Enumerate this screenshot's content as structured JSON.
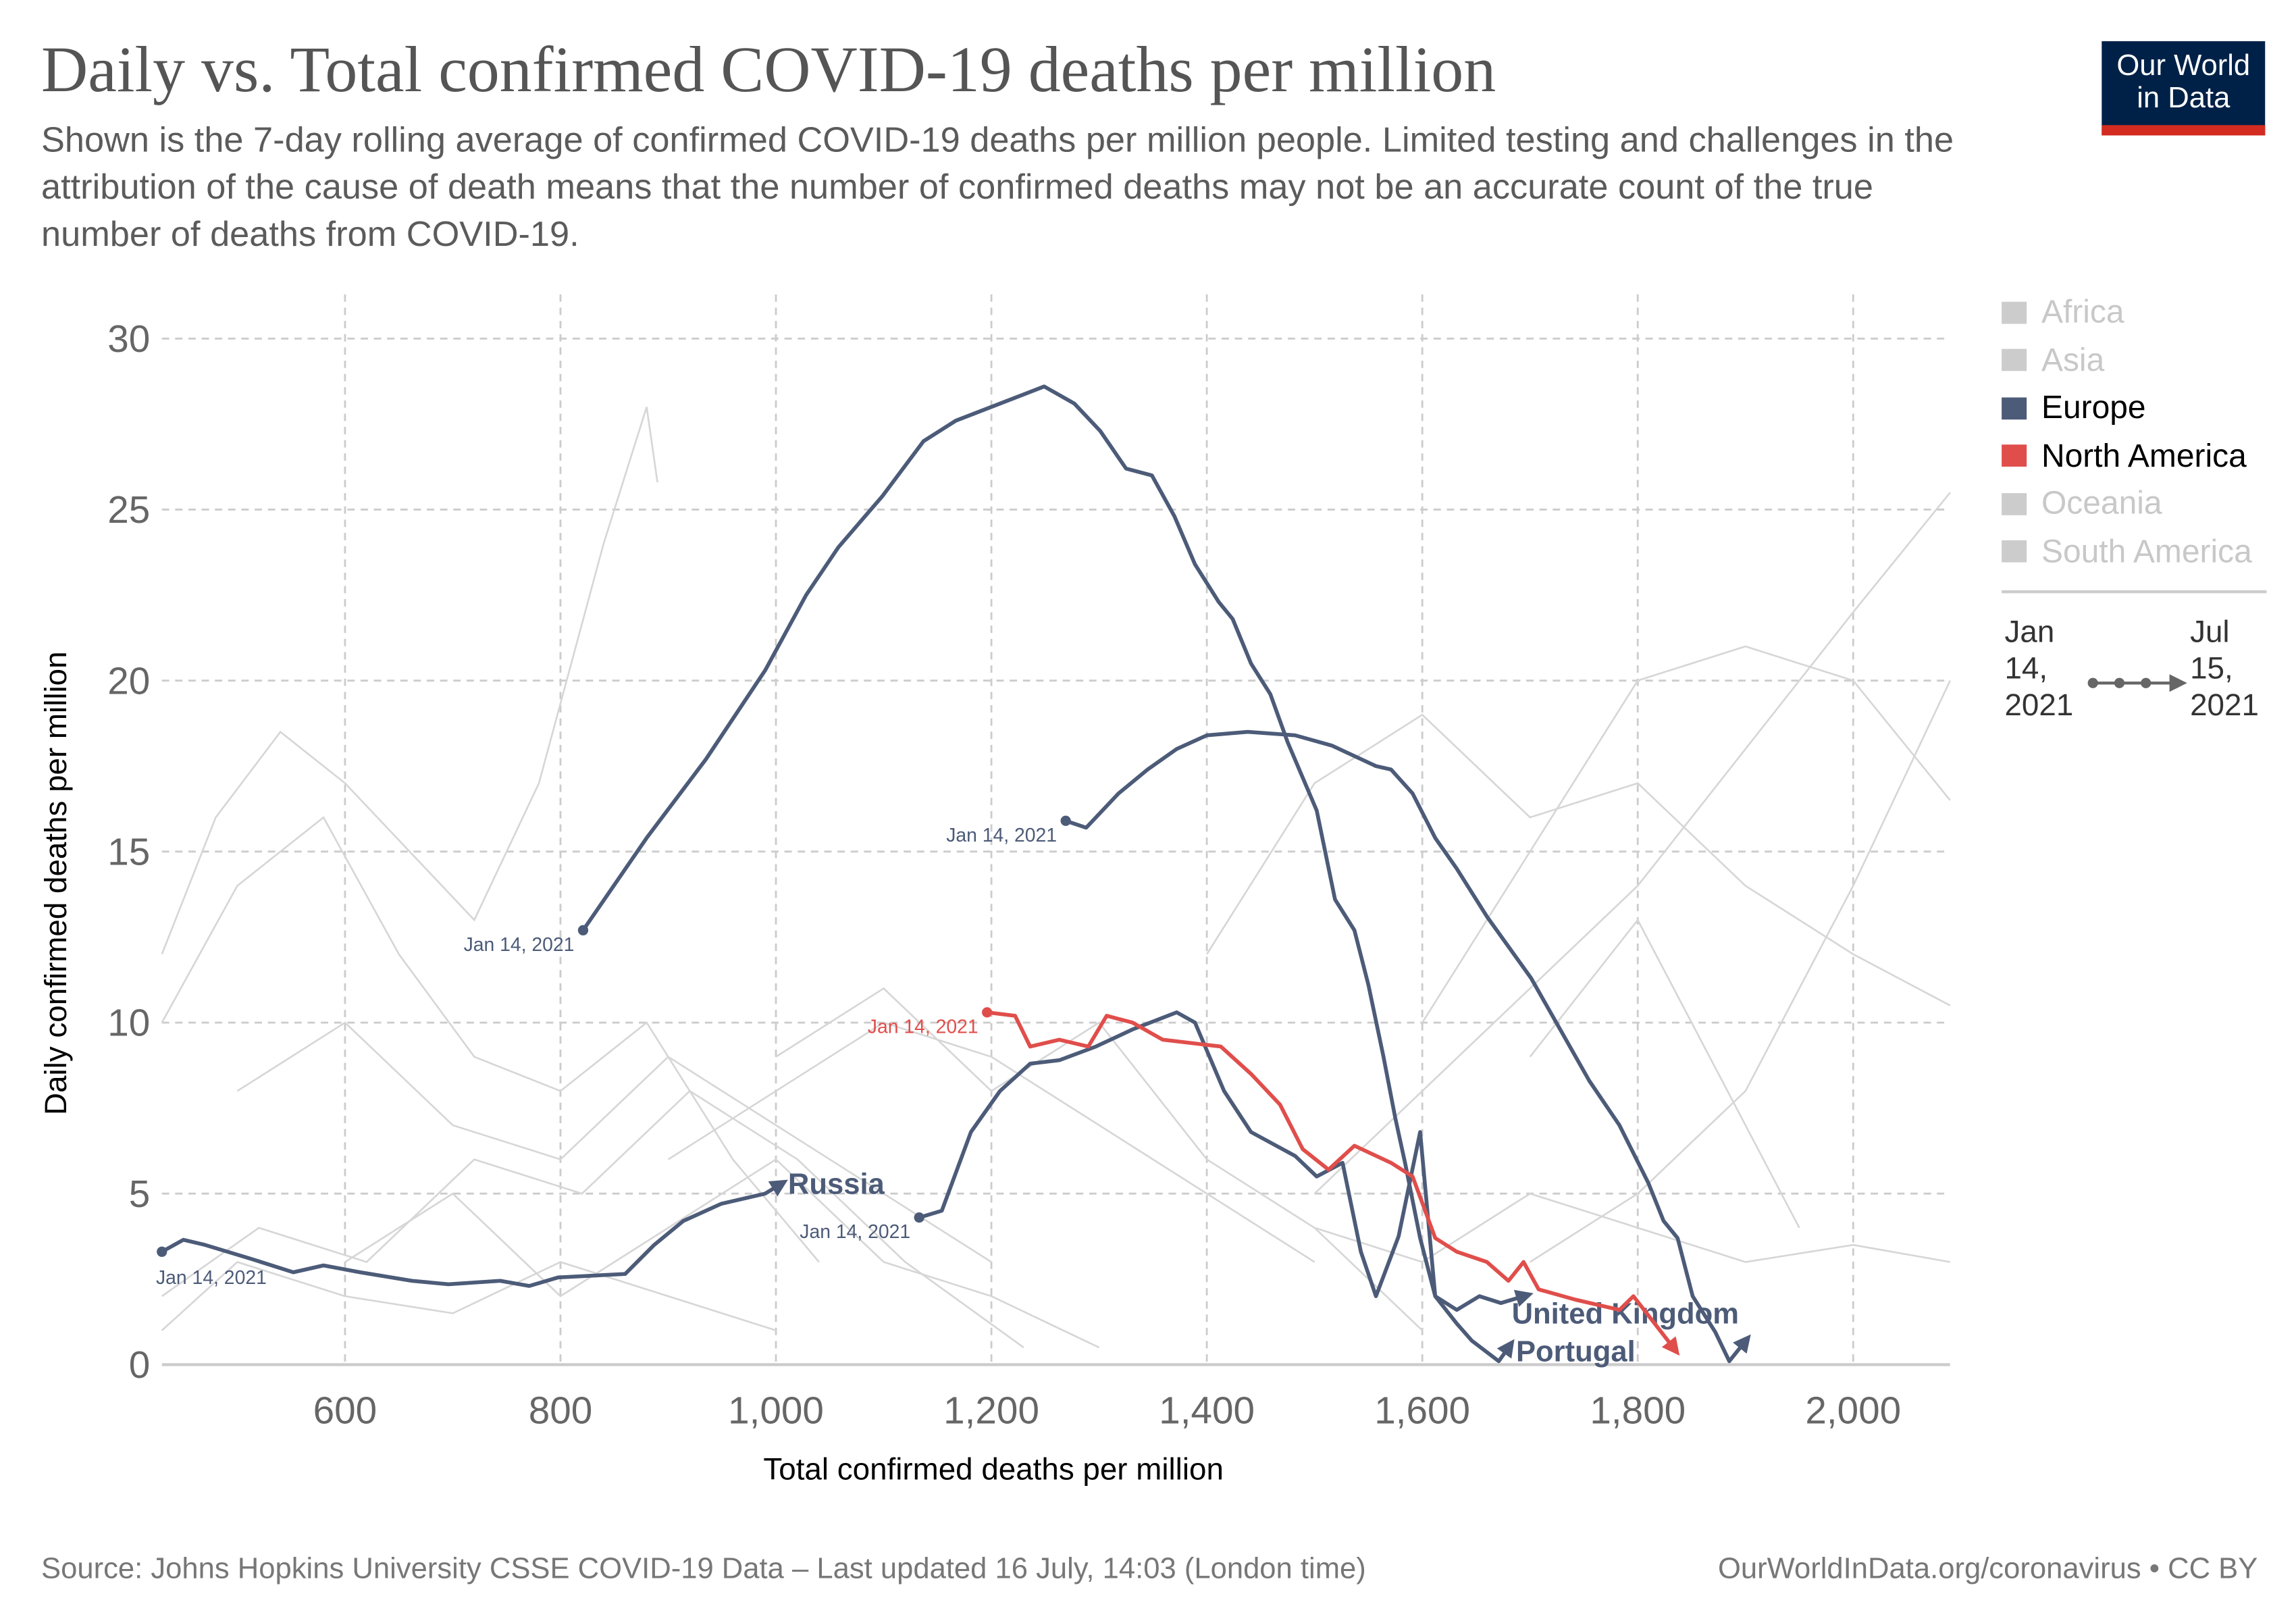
{
  "header": {
    "title": "Daily vs. Total confirmed COVID-19 deaths per million",
    "subtitle": "Shown is the 7-day rolling average of confirmed COVID-19 deaths per million people. Limited testing and challenges in the attribution of the cause of death means that the number of confirmed deaths may not be an accurate count of the true number of deaths from COVID-19.",
    "logo_line1": "Our World",
    "logo_line2": "in Data"
  },
  "legend": {
    "items": [
      {
        "label": "Africa",
        "color": "#cccccc",
        "active": false
      },
      {
        "label": "Asia",
        "color": "#cccccc",
        "active": false
      },
      {
        "label": "Europe",
        "color": "#4c5b78",
        "active": true
      },
      {
        "label": "North America",
        "color": "#e04e4b",
        "active": true
      },
      {
        "label": "Oceania",
        "color": "#cccccc",
        "active": false
      },
      {
        "label": "South America",
        "color": "#cccccc",
        "active": false
      }
    ],
    "timeline": {
      "start": "Jan 14, 2021",
      "end": "Jul 15, 2021"
    }
  },
  "footer": {
    "source": "Source: Johns Hopkins University CSSE COVID-19 Data – Last updated 16 July, 14:03 (London time)",
    "credit": "OurWorldInData.org/coronavirus • CC BY"
  },
  "chart_data": {
    "type": "line",
    "title": "Daily vs. Total confirmed COVID-19 deaths per million",
    "xlabel": "Total confirmed deaths per million",
    "ylabel": "Daily confirmed deaths per million",
    "xlim": [
      430,
      2090
    ],
    "ylim": [
      0,
      30
    ],
    "xticks": [
      600,
      800,
      1000,
      1200,
      1400,
      1600,
      1800,
      2000
    ],
    "xtick_labels": [
      "600",
      "800",
      "1,000",
      "1,200",
      "1,400",
      "1,600",
      "1,800",
      "2,000"
    ],
    "yticks": [
      0,
      5,
      10,
      15,
      20,
      25,
      30
    ],
    "ytick_labels": [
      "0",
      "5",
      "10",
      "15",
      "20",
      "25",
      "30"
    ],
    "grid": true,
    "legend_position": "right",
    "series": [
      {
        "name": "Portugal",
        "region": "Europe",
        "color": "#4c5b78",
        "label": "Portugal",
        "start_label": "Jan 14, 2021",
        "x": [
          821,
          880,
          935,
          990,
          1028,
          1058,
          1099,
          1137,
          1167,
          1249,
          1277,
          1301,
          1325,
          1349,
          1370,
          1389,
          1411,
          1424,
          1441,
          1459,
          1475,
          1502,
          1519,
          1537,
          1550,
          1564,
          1575,
          1584,
          1598,
          1612,
          1632,
          1646,
          1671,
          1680
        ],
        "y": [
          12.7,
          15.4,
          17.7,
          20.3,
          22.5,
          23.9,
          25.4,
          27.0,
          27.6,
          28.6,
          28.1,
          27.3,
          26.2,
          26.0,
          24.8,
          23.4,
          22.3,
          21.8,
          20.5,
          19.6,
          18.2,
          16.2,
          13.6,
          12.7,
          11.1,
          9.0,
          7.2,
          5.9,
          3.7,
          2.0,
          1.2,
          0.7,
          0.1,
          0.5
        ]
      },
      {
        "name": "United Kingdom",
        "region": "Europe",
        "color": "#4c5b78",
        "label": "United Kingdom",
        "start_label": "Jan 14, 2021",
        "x": [
          1269,
          1288,
          1318,
          1345,
          1372,
          1400,
          1438,
          1482,
          1516,
          1557,
          1571,
          1591,
          1612,
          1632,
          1660,
          1701,
          1728,
          1755,
          1783,
          1810,
          1824,
          1837,
          1851,
          1872,
          1885,
          1899
        ],
        "y": [
          15.9,
          15.7,
          16.7,
          17.4,
          18.0,
          18.4,
          18.5,
          18.4,
          18.1,
          17.5,
          17.4,
          16.7,
          15.4,
          14.5,
          13.1,
          11.3,
          9.8,
          8.3,
          7.0,
          5.3,
          4.2,
          3.7,
          2.0,
          0.95,
          0.1,
          0.65
        ]
      },
      {
        "name": "Russia",
        "region": "Europe",
        "color": "#4c5b78",
        "label": "Russia",
        "start_label": "Jan 14, 2021",
        "x": [
          430,
          450,
          470,
          512,
          552,
          580,
          614,
          662,
          696,
          744,
          771,
          798,
          860,
          887,
          914,
          949,
          990,
          1003
        ],
        "y": [
          3.3,
          3.65,
          3.5,
          3.1,
          2.7,
          2.9,
          2.7,
          2.45,
          2.35,
          2.45,
          2.3,
          2.55,
          2.65,
          3.5,
          4.2,
          4.7,
          5.0,
          5.25
        ]
      },
      {
        "name": "",
        "region": "Europe",
        "color": "#4c5b78",
        "label": "",
        "start_label": "Jan 14, 2021",
        "x": [
          1133,
          1154,
          1181,
          1208,
          1236,
          1263,
          1297,
          1331,
          1372,
          1389,
          1416,
          1441,
          1482,
          1502,
          1526,
          1543,
          1557,
          1578,
          1598,
          1612,
          1632,
          1653,
          1673,
          1694
        ],
        "y": [
          4.3,
          4.5,
          6.8,
          8.0,
          8.8,
          8.9,
          9.3,
          9.8,
          10.3,
          10.0,
          8.0,
          6.8,
          6.1,
          5.5,
          5.9,
          3.3,
          2.0,
          3.75,
          6.8,
          2.0,
          1.6,
          2.0,
          1.8,
          2.0
        ]
      },
      {
        "name": "",
        "region": "North America",
        "color": "#e04e4b",
        "label": "",
        "start_label": "Jan 14, 2021",
        "x": [
          1196,
          1222,
          1236,
          1263,
          1290,
          1307,
          1331,
          1359,
          1413,
          1441,
          1468,
          1489,
          1513,
          1537,
          1571,
          1591,
          1612,
          1632,
          1660,
          1680,
          1694,
          1708,
          1742,
          1783,
          1796,
          1833
        ],
        "y": [
          10.3,
          10.2,
          9.3,
          9.5,
          9.3,
          10.2,
          10.0,
          9.5,
          9.3,
          8.5,
          7.6,
          6.3,
          5.7,
          6.4,
          5.9,
          5.5,
          3.7,
          3.3,
          3.0,
          2.45,
          3.0,
          2.2,
          1.9,
          1.6,
          2.0,
          0.5
        ]
      }
    ],
    "background_series": [
      {
        "x": [
          430,
          480,
          540,
          600,
          660,
          720,
          780,
          840,
          880,
          890
        ],
        "y": [
          12,
          16,
          18.5,
          17,
          15,
          13,
          17,
          24,
          28,
          25.8
        ]
      },
      {
        "x": [
          430,
          500,
          580,
          650,
          720,
          800,
          880,
          960,
          1040
        ],
        "y": [
          10,
          14,
          16,
          12,
          9,
          8,
          10,
          6,
          3
        ]
      },
      {
        "x": [
          500,
          600,
          700,
          800,
          900,
          1000,
          1100,
          1200
        ],
        "y": [
          8,
          10,
          7,
          6,
          9,
          7,
          5,
          3
        ]
      },
      {
        "x": [
          430,
          520,
          620,
          720,
          820,
          920,
          1020,
          1120,
          1230
        ],
        "y": [
          2,
          4,
          3,
          6,
          5,
          8,
          6,
          3,
          0.5
        ]
      },
      {
        "x": [
          900,
          1000,
          1100,
          1200,
          1300,
          1400,
          1500
        ],
        "y": [
          6,
          8,
          10,
          9,
          7,
          5,
          3
        ]
      },
      {
        "x": [
          1400,
          1500,
          1600,
          1700,
          1800,
          1900,
          2000,
          2090
        ],
        "y": [
          12,
          17,
          19,
          16,
          17,
          14,
          12,
          10.5
        ]
      },
      {
        "x": [
          1500,
          1600,
          1700,
          1800,
          1900,
          2000,
          2090
        ],
        "y": [
          5,
          8,
          11,
          14,
          18,
          22,
          25.5
        ]
      },
      {
        "x": [
          1600,
          1700,
          1800,
          1900,
          2000,
          2090
        ],
        "y": [
          10,
          15,
          20,
          21,
          20,
          16.5
        ]
      },
      {
        "x": [
          1700,
          1800,
          1900,
          2000,
          2090
        ],
        "y": [
          3,
          5,
          8,
          14,
          20
        ]
      },
      {
        "x": [
          1500,
          1600,
          1700,
          1800,
          1900,
          2000,
          2090
        ],
        "y": [
          4,
          3,
          5,
          4,
          3,
          3.5,
          3
        ]
      },
      {
        "x": [
          600,
          700,
          800,
          900,
          1000,
          1100,
          1200,
          1300
        ],
        "y": [
          3,
          5,
          2,
          4,
          6,
          3,
          2,
          0.5
        ]
      },
      {
        "x": [
          1000,
          1100,
          1200,
          1300,
          1400,
          1500,
          1600
        ],
        "y": [
          9,
          11,
          8,
          10,
          6,
          4,
          1
        ]
      },
      {
        "x": [
          430,
          500,
          600,
          700,
          800,
          900,
          1000
        ],
        "y": [
          1,
          3,
          2,
          1.5,
          3,
          2,
          1
        ]
      },
      {
        "x": [
          1700,
          1800,
          1850,
          1900,
          1950
        ],
        "y": [
          9,
          13,
          10,
          7,
          4
        ]
      }
    ]
  }
}
